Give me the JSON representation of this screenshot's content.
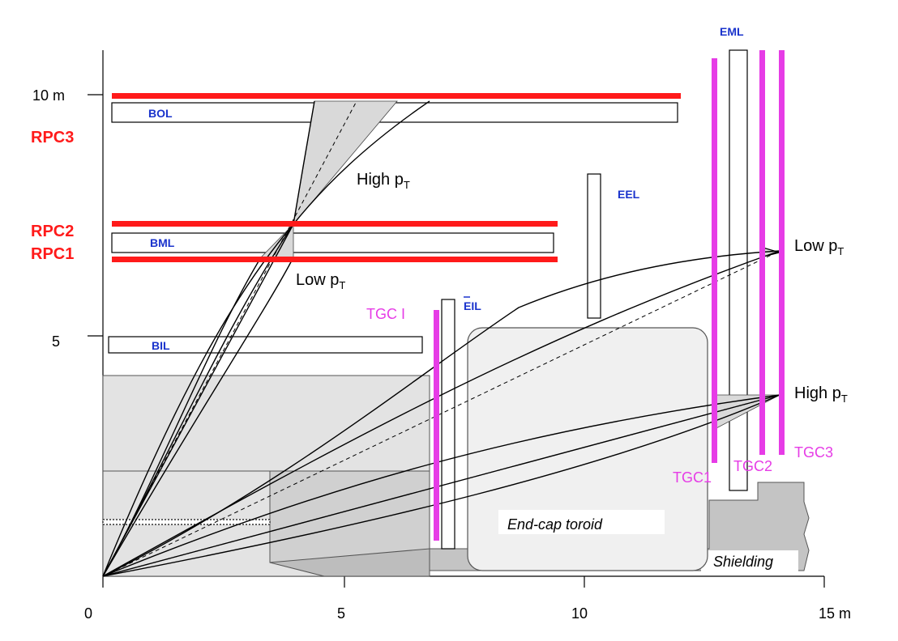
{
  "colors": {
    "rpc": "#ff1a1a",
    "tgc": "#e63ce6",
    "chamber_label": "#1a33cc",
    "grey_fill": "#e0e0e0",
    "dark_grey": "#c4c4c4"
  },
  "axes": {
    "x_ticks": [
      "0",
      "5",
      "10",
      "15 m"
    ],
    "y_ticks": [
      "5",
      "10 m"
    ]
  },
  "rpc_labels": [
    "RPC3",
    "RPC2",
    "RPC1"
  ],
  "chambers": {
    "bol": "BOL",
    "bml": "BML",
    "bil": "BIL",
    "eel": "EEL",
    "eml": "EML",
    "eil": "EIL"
  },
  "tgc_labels": {
    "tgc_i": "TGC I",
    "tgc1": "TGC1",
    "tgc2": "TGC2",
    "tgc3": "TGC3"
  },
  "pt_labels": {
    "barrel_high": "High p",
    "barrel_low": "Low p",
    "endcap_low": "Low p",
    "endcap_high": "High p",
    "subscript": "T"
  },
  "structures": {
    "toroid": "End-cap toroid",
    "shielding": "Shielding"
  }
}
